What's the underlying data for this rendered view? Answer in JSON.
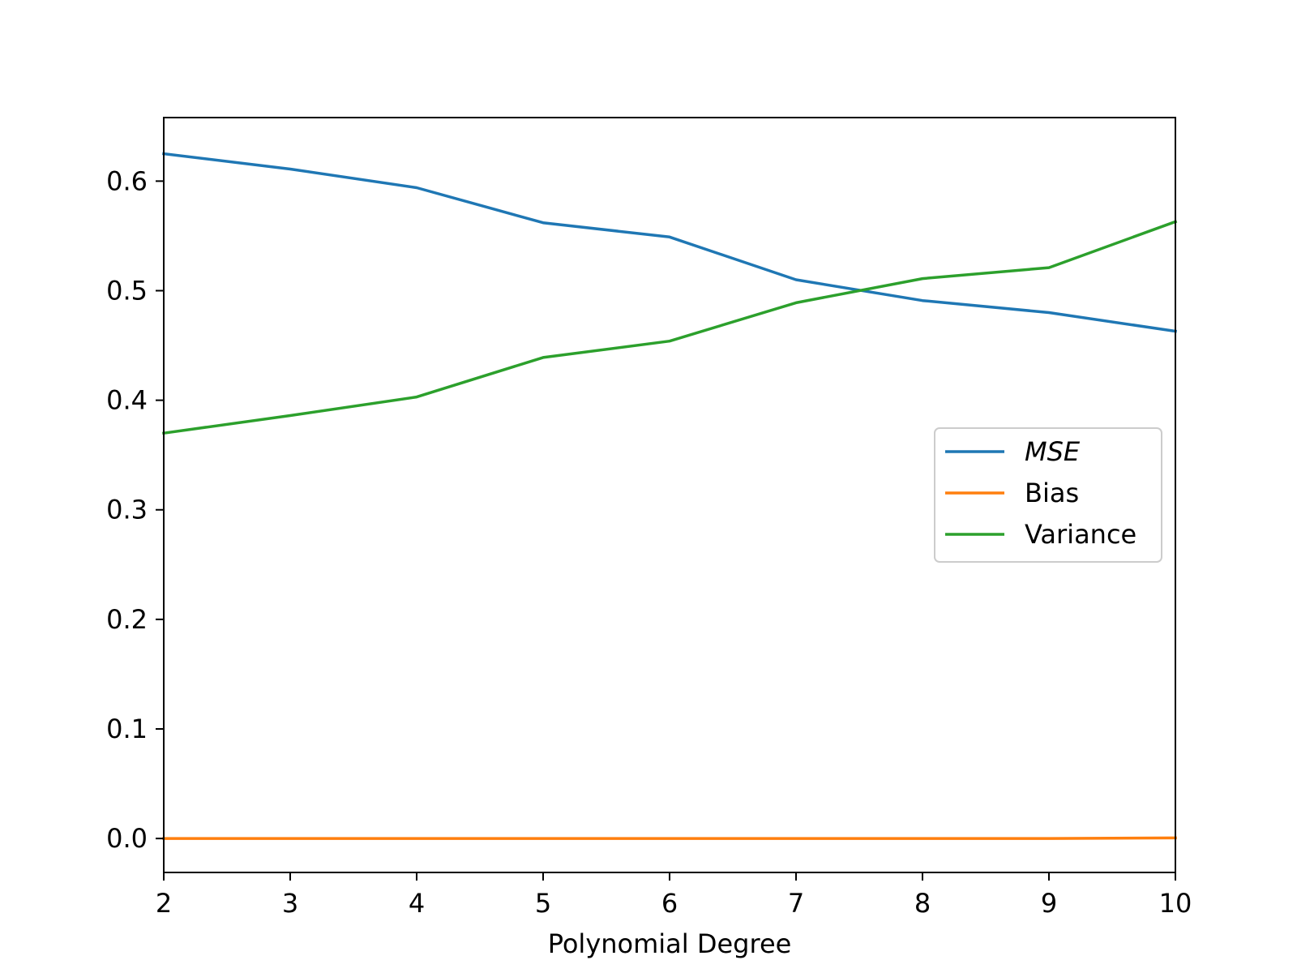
{
  "chart_data": {
    "type": "line",
    "xlabel": "Polynomial Degree",
    "ylabel": "",
    "xlim": [
      2,
      10
    ],
    "ylim": [
      -0.031,
      0.658
    ],
    "x": [
      2,
      3,
      4,
      5,
      6,
      7,
      8,
      9,
      10
    ],
    "xticks": [
      2,
      3,
      4,
      5,
      6,
      7,
      8,
      9,
      10
    ],
    "xtick_labels": [
      "2",
      "3",
      "4",
      "5",
      "6",
      "7",
      "8",
      "9",
      "10"
    ],
    "yticks": [
      0.0,
      0.1,
      0.2,
      0.3,
      0.4,
      0.5,
      0.6
    ],
    "ytick_labels": [
      "0.0",
      "0.1",
      "0.2",
      "0.3",
      "0.4",
      "0.5",
      "0.6"
    ],
    "grid": false,
    "legend_placement": "center-right",
    "series": [
      {
        "name": "MSE",
        "italic": true,
        "color": "#1f77b4",
        "values": [
          0.625,
          0.611,
          0.594,
          0.562,
          0.549,
          0.51,
          0.491,
          0.48,
          0.463
        ]
      },
      {
        "name": "Bias",
        "italic": false,
        "color": "#ff7f0e",
        "values": [
          0.0,
          0.0,
          0.0,
          0.0,
          0.0,
          0.0,
          0.0,
          0.0,
          0.0005
        ]
      },
      {
        "name": "Variance",
        "italic": false,
        "color": "#2ca02c",
        "values": [
          0.37,
          0.386,
          0.403,
          0.439,
          0.454,
          0.489,
          0.511,
          0.521,
          0.563
        ]
      }
    ]
  }
}
